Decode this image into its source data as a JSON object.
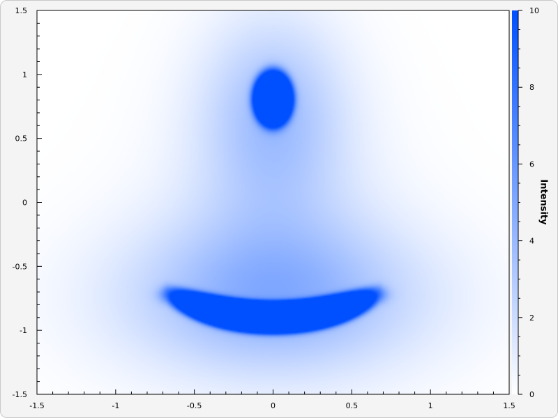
{
  "chart_data": {
    "type": "heatmap",
    "title": "",
    "xlabel": "",
    "ylabel": "",
    "xlim": [
      -1.5,
      1.5
    ],
    "ylim": [
      -1.5,
      1.5
    ],
    "x_ticks": [
      "-1.5",
      "-1",
      "-0.5",
      "0",
      "0.5",
      "1",
      "1.5"
    ],
    "y_ticks": [
      "1.5",
      "1",
      "0.5",
      "0",
      "-0.5",
      "-1",
      "-1.5"
    ],
    "colorbar": {
      "label": "Intensity",
      "range": [
        0,
        10
      ],
      "ticks": [
        "10",
        "8",
        "6",
        "4",
        "2",
        "0"
      ],
      "color_low": "#ffffff",
      "color_high": "#0050ff"
    },
    "features": [
      {
        "shape": "ellipse",
        "center_x": 0.0,
        "center_y": 0.81,
        "peak": 10
      },
      {
        "shape": "crescent",
        "center_x": 0.0,
        "center_y": -0.78,
        "x_extent": [
          -0.7,
          0.7
        ],
        "peak": 10
      }
    ],
    "grid": false
  }
}
